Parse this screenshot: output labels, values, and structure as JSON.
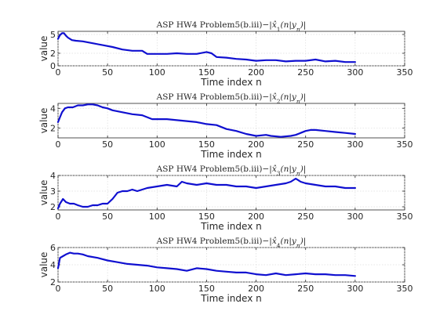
{
  "chart_data": [
    {
      "type": "line",
      "title": "ASP HW4 Problem5(b.iii)−|x̂1(n|yn)|",
      "title_parts": {
        "lead": "ASP HW4 Problem5(b.iii)−|",
        "x": "x̂",
        "sub": "1",
        "tail": "(n|y",
        "sub2": "n",
        "end": ")|"
      },
      "xlabel": "Time index n",
      "ylabel": "value",
      "xlim": [
        0,
        350
      ],
      "ylim": [
        0,
        5.5
      ],
      "xticks": [
        0,
        50,
        100,
        150,
        200,
        250,
        300,
        350
      ],
      "yticks": [
        0,
        2,
        5
      ],
      "grid": true,
      "color": "#1010d0",
      "series": [
        {
          "x": [
            0,
            2,
            4,
            6,
            8,
            10,
            14,
            18,
            25,
            35,
            45,
            55,
            65,
            75,
            85,
            90,
            100,
            110,
            120,
            130,
            140,
            150,
            155,
            160,
            170,
            180,
            190,
            200,
            210,
            220,
            230,
            240,
            250,
            260,
            270,
            280,
            290,
            300
          ],
          "values": [
            4.3,
            4.9,
            5.2,
            5.2,
            4.8,
            4.5,
            4.1,
            4.0,
            3.9,
            3.6,
            3.3,
            3.0,
            2.6,
            2.4,
            2.4,
            1.9,
            1.9,
            1.9,
            2.0,
            1.9,
            1.9,
            2.2,
            2.0,
            1.4,
            1.3,
            1.1,
            1.0,
            0.8,
            0.9,
            0.9,
            0.7,
            0.8,
            0.8,
            1.0,
            0.7,
            0.8,
            0.6,
            0.6
          ]
        }
      ]
    },
    {
      "type": "line",
      "title": "ASP HW4 Problem5(b.iii)−|x̂2(n|yn)|",
      "title_parts": {
        "lead": "ASP HW4 Problem5(b.iii)−|",
        "x": "x̂",
        "sub": "2",
        "tail": "(n|y",
        "sub2": "n",
        "end": ")|"
      },
      "xlabel": "Time index n",
      "ylabel": "value",
      "xlim": [
        0,
        350
      ],
      "ylim": [
        1,
        4.5
      ],
      "xticks": [
        0,
        50,
        100,
        150,
        200,
        250,
        300,
        350
      ],
      "yticks": [
        2,
        4
      ],
      "grid": true,
      "color": "#1010d0",
      "series": [
        {
          "x": [
            0,
            2,
            4,
            7,
            10,
            15,
            20,
            25,
            30,
            35,
            40,
            45,
            50,
            55,
            65,
            75,
            85,
            95,
            100,
            110,
            120,
            130,
            140,
            150,
            160,
            170,
            180,
            190,
            200,
            210,
            215,
            225,
            235,
            240,
            245,
            250,
            255,
            260,
            270,
            280,
            290,
            300
          ],
          "values": [
            2.6,
            3.1,
            3.6,
            4.0,
            4.1,
            4.1,
            4.3,
            4.3,
            4.4,
            4.4,
            4.3,
            4.1,
            4.0,
            3.8,
            3.6,
            3.4,
            3.3,
            2.9,
            2.9,
            2.9,
            2.8,
            2.7,
            2.6,
            2.4,
            2.3,
            1.9,
            1.7,
            1.4,
            1.2,
            1.3,
            1.2,
            1.1,
            1.2,
            1.3,
            1.5,
            1.7,
            1.8,
            1.8,
            1.7,
            1.6,
            1.5,
            1.4
          ]
        }
      ]
    },
    {
      "type": "line",
      "title": "ASP HW4 Problem5(b.iii)−|x̂3(n|yn)|",
      "title_parts": {
        "lead": "ASP HW4 Problem5(b.iii)−|",
        "x": "x̂",
        "sub": "3",
        "tail": "(n|y",
        "sub2": "n",
        "end": ")|"
      },
      "xlabel": "Time index n",
      "ylabel": "value",
      "xlim": [
        0,
        350
      ],
      "ylim": [
        1.8,
        4
      ],
      "xticks": [
        0,
        50,
        100,
        150,
        200,
        250,
        300,
        350
      ],
      "yticks": [
        2,
        3,
        4
      ],
      "grid": true,
      "color": "#1010d0",
      "series": [
        {
          "x": [
            0,
            2,
            5,
            8,
            12,
            16,
            20,
            25,
            30,
            35,
            40,
            45,
            50,
            55,
            60,
            65,
            70,
            75,
            80,
            90,
            100,
            110,
            120,
            125,
            130,
            140,
            150,
            160,
            170,
            180,
            190,
            200,
            210,
            220,
            230,
            235,
            240,
            245,
            250,
            260,
            270,
            280,
            290,
            300
          ],
          "values": [
            1.9,
            2.2,
            2.5,
            2.3,
            2.2,
            2.2,
            2.1,
            2.0,
            2.0,
            2.1,
            2.1,
            2.2,
            2.2,
            2.5,
            2.9,
            3.0,
            3.0,
            3.1,
            3.0,
            3.2,
            3.3,
            3.4,
            3.3,
            3.6,
            3.5,
            3.4,
            3.5,
            3.4,
            3.4,
            3.3,
            3.3,
            3.2,
            3.3,
            3.4,
            3.5,
            3.6,
            3.8,
            3.6,
            3.5,
            3.4,
            3.3,
            3.3,
            3.2,
            3.2
          ]
        }
      ]
    },
    {
      "type": "line",
      "title": "ASP HW4 Problem5(b.iii)−|x̂4(n|yn)|",
      "title_parts": {
        "lead": "ASP HW4 Problem5(b.iii)−|",
        "x": "x̂",
        "sub": "4",
        "tail": "(n|y",
        "sub2": "n",
        "end": ")|"
      },
      "xlabel": "Time index n",
      "ylabel": "value",
      "xlim": [
        0,
        350
      ],
      "ylim": [
        2,
        6
      ],
      "xticks": [
        0,
        50,
        100,
        150,
        200,
        250,
        300,
        350
      ],
      "yticks": [
        2,
        4,
        6
      ],
      "grid": true,
      "color": "#1010d0",
      "series": [
        {
          "x": [
            0,
            2,
            5,
            8,
            12,
            16,
            20,
            25,
            30,
            40,
            50,
            60,
            70,
            80,
            90,
            100,
            110,
            120,
            130,
            140,
            150,
            160,
            170,
            180,
            190,
            200,
            210,
            220,
            230,
            240,
            250,
            260,
            270,
            280,
            290,
            300
          ],
          "values": [
            3.6,
            4.8,
            5.0,
            5.2,
            5.4,
            5.3,
            5.3,
            5.2,
            5.0,
            4.8,
            4.5,
            4.3,
            4.1,
            4.0,
            3.9,
            3.7,
            3.6,
            3.5,
            3.3,
            3.6,
            3.5,
            3.3,
            3.2,
            3.1,
            3.1,
            2.9,
            2.8,
            3.0,
            2.8,
            2.9,
            3.0,
            2.9,
            2.9,
            2.8,
            2.8,
            2.7
          ]
        }
      ]
    }
  ]
}
